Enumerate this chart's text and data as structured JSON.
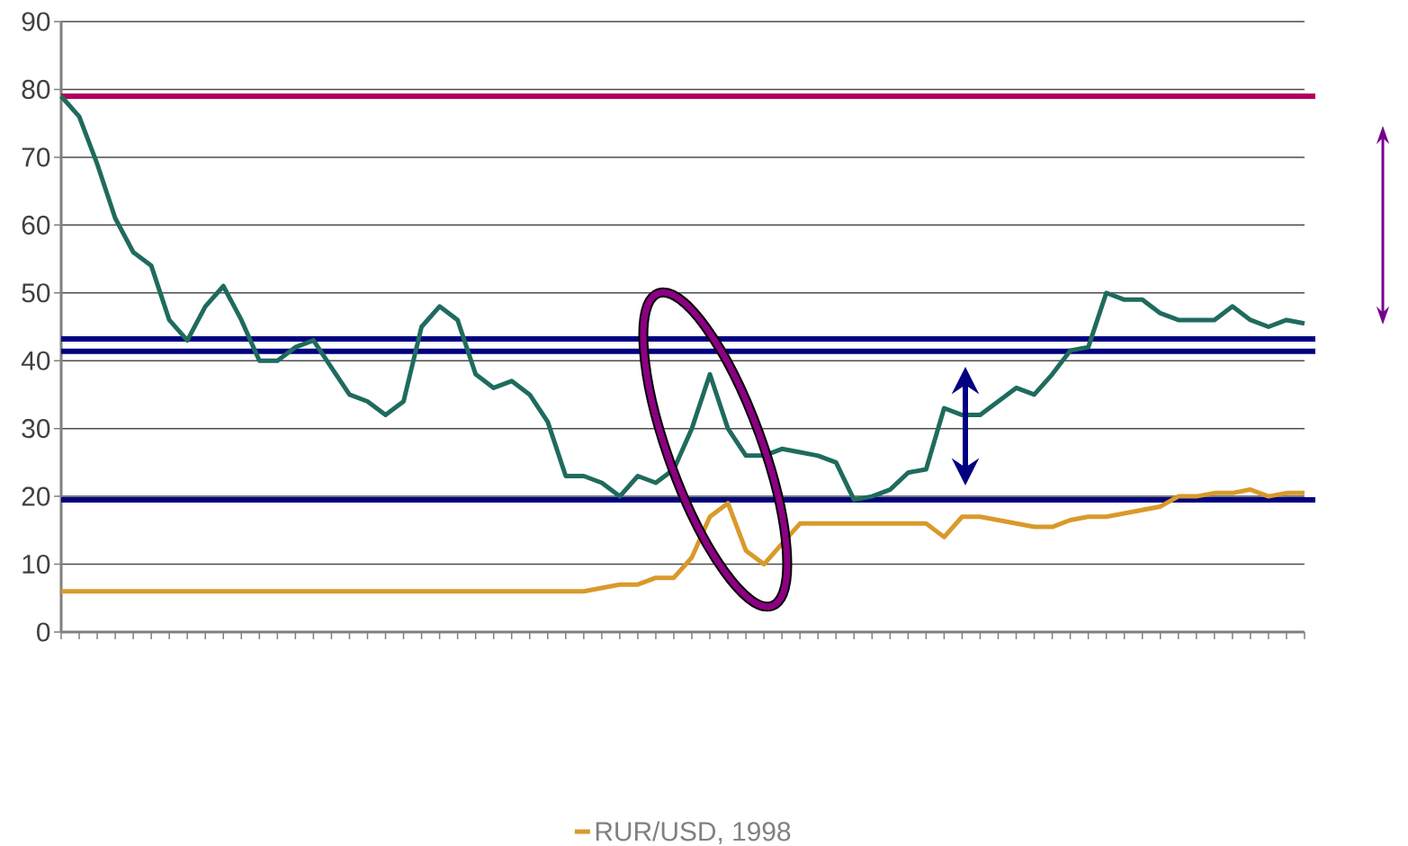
{
  "chart_data": {
    "type": "line",
    "categories": [
      null,
      null,
      null,
      null,
      null,
      null,
      null,
      null,
      null,
      null,
      null,
      null,
      null,
      null,
      null,
      null,
      null,
      null,
      null,
      null,
      null,
      null,
      null,
      null,
      null,
      null,
      null,
      null,
      null,
      null,
      null,
      null,
      null,
      null,
      null,
      null,
      null,
      null,
      null,
      null,
      null,
      null,
      null,
      null,
      null,
      null,
      null,
      null,
      null,
      null,
      null,
      null,
      null,
      null,
      null,
      null,
      null,
      null,
      null,
      null,
      null,
      null,
      null,
      null,
      null,
      null,
      null,
      null,
      null,
      null
    ],
    "series": [
      {
        "name": "RUR/USD, 1998",
        "color": "#d89a2a",
        "values": [
          6,
          6,
          6,
          6,
          6,
          6,
          6,
          6,
          6,
          6,
          6,
          6,
          6,
          6,
          6,
          6,
          6,
          6,
          6,
          6,
          6,
          6,
          6,
          6,
          6,
          6,
          6,
          6,
          6,
          6,
          6.5,
          7,
          7,
          8,
          8,
          11,
          17,
          19,
          12,
          10,
          13,
          16,
          16,
          16,
          16,
          16,
          16,
          16,
          16,
          14,
          17,
          17,
          16.5,
          16,
          15.5,
          15.5,
          16.5,
          17,
          17,
          17.5,
          18,
          18.5,
          20,
          20,
          20.5,
          20.5,
          21,
          20,
          20.5,
          20.5
        ]
      },
      {
        "color": "#1f6b5e",
        "values": [
          79,
          76,
          69,
          61,
          56,
          54,
          46,
          43,
          48,
          51,
          46,
          40,
          40,
          42,
          43,
          39,
          35,
          34,
          32,
          34,
          45,
          48,
          46,
          38,
          36,
          37,
          35,
          31,
          23,
          23,
          22,
          20,
          23,
          22,
          24,
          30,
          38,
          30,
          26,
          26,
          27,
          26.5,
          26,
          25,
          19.5,
          20,
          21,
          23.5,
          24,
          33,
          32,
          32,
          34,
          36,
          35,
          38,
          41.5,
          42,
          50,
          49,
          49,
          47,
          46,
          46,
          46,
          48,
          46,
          45,
          46,
          45.5
        ]
      }
    ],
    "ylim": [
      0,
      90
    ],
    "yticks": [
      0,
      10,
      20,
      30,
      40,
      50,
      60,
      70,
      80,
      90
    ],
    "grid": "y",
    "legend": "bottom",
    "ref_lines": [
      {
        "axis": "y",
        "value": 79,
        "color": "#b00060"
      },
      {
        "axis": "y",
        "value": 41.4,
        "color": "#000080"
      },
      {
        "axis": "y",
        "value": 19.5,
        "color": "#000080"
      },
      {
        "axis": "y",
        "value": 43.2,
        "color": "#000080"
      }
    ]
  }
}
